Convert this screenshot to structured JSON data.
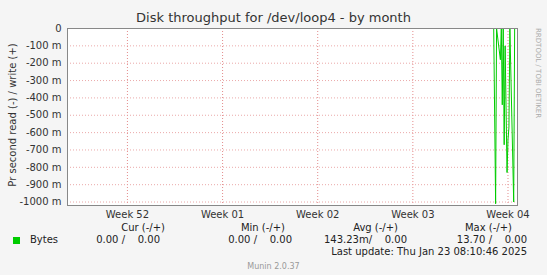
{
  "chart_data": {
    "type": "line",
    "title": "Disk throughput for /dev/loop4 - by month",
    "y_label": "Pr second read (-) / write (+)",
    "x": [
      -0.63,
      3.85,
      3.87,
      3.88,
      3.92,
      3.93,
      3.94,
      3.95,
      3.96,
      3.97,
      3.99,
      4.0,
      4.01,
      4.02,
      4.06,
      4.07,
      4.08
    ],
    "series": [
      {
        "name": "Bytes",
        "color": "#00cc00",
        "values": [
          0,
          0,
          -1.01,
          0,
          -0.18,
          0,
          -0.44,
          0,
          -0.67,
          -0.1,
          -0.83,
          -0.64,
          -0.57,
          0,
          -1.0,
          0,
          0
        ],
        "stats": [
          "0.00 /    0.00",
          "0.00 /    0.00",
          "143.23m/    0.00",
          "13.70 /    0.00"
        ]
      }
    ],
    "stat_headers": [
      "Cur (-/+)",
      "Min (-/+)",
      "Avg (-/+)",
      "Max (-/+)"
    ],
    "xlim": [
      -0.63,
      4.1
    ],
    "xticks": [
      {
        "value": 0,
        "label": "Week 52"
      },
      {
        "value": 1,
        "label": "Week 01"
      },
      {
        "value": 2,
        "label": "Week 02"
      },
      {
        "value": 3,
        "label": "Week 03"
      },
      {
        "value": 4,
        "label": "Week 04"
      }
    ],
    "ylim": [
      -1.02,
      0
    ],
    "yticks": [
      0,
      {
        "value": -0.1,
        "label": "-100 m"
      },
      {
        "value": -0.2,
        "label": "-200 m"
      },
      {
        "value": -0.3,
        "label": "-300 m"
      },
      {
        "value": -0.4,
        "label": "-400 m"
      },
      {
        "value": -0.5,
        "label": "-500 m"
      },
      {
        "value": -0.6,
        "label": "-600 m"
      },
      {
        "value": -0.7,
        "label": "-700 m"
      },
      {
        "value": -0.8,
        "label": "-800 m"
      },
      {
        "value": -0.9,
        "label": "-900 m"
      },
      {
        "value": -1.0,
        "label": "-1000 m"
      }
    ],
    "grid": true,
    "last_update": "Last update: Thu Jan 23 08:10:46 2025",
    "footer": "Munin 2.0.37",
    "watermark": "RRDTOOL / TOBI OETIKER"
  }
}
